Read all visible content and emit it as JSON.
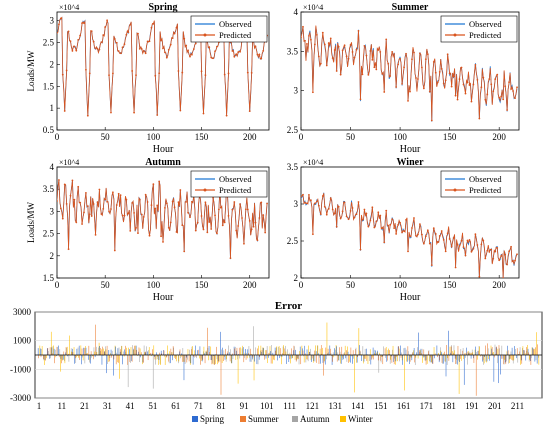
{
  "chart_data": [
    {
      "type": "line",
      "title": "Spring",
      "xlabel": "Hour",
      "ylabel": "Loads/MW",
      "y_exponent": "×10^4",
      "xlim": [
        0,
        220
      ],
      "ylim": [
        0.5,
        3.2
      ],
      "xticks": [
        "0",
        "50",
        "100",
        "150",
        "200"
      ],
      "yticks": [
        "0.5",
        "1",
        "1.5",
        "2",
        "2.5",
        "3"
      ],
      "series": [
        {
          "name": "Observed"
        },
        {
          "name": "Predicted"
        }
      ],
      "pattern": {
        "kind": "daily",
        "base": 2.7,
        "amp": 0.35,
        "peak": 3.05,
        "trough": 0.9,
        "trough_at": [
          8,
          32,
          56,
          80,
          104,
          128,
          152,
          176,
          200
        ],
        "trend": -0.4
      },
      "legend_position": "top-right"
    },
    {
      "type": "line",
      "title": "Summer",
      "xlabel": "Hour",
      "ylabel": "",
      "y_exponent": "×10^4",
      "xlim": [
        0,
        220
      ],
      "ylim": [
        2.5,
        4.0
      ],
      "xticks": [
        "0",
        "50",
        "100",
        "150",
        "200"
      ],
      "yticks": [
        "2.5",
        "3",
        "3.5",
        "4"
      ],
      "series": [
        {
          "name": "Observed"
        },
        {
          "name": "Predicted"
        }
      ],
      "pattern": {
        "kind": "noisy_decline",
        "start": 3.6,
        "end": 3.0,
        "amp": 0.25,
        "drop": 0.45
      },
      "legend_position": "top-right"
    },
    {
      "type": "line",
      "title": "Autumn",
      "xlabel": "Hour",
      "ylabel": "Loads/MW",
      "y_exponent": "×10^4",
      "xlim": [
        0,
        220
      ],
      "ylim": [
        1.5,
        4.0
      ],
      "xticks": [
        "0",
        "50",
        "100",
        "150",
        "200"
      ],
      "yticks": [
        "1.5",
        "2",
        "2.5",
        "3",
        "3.5",
        "4"
      ],
      "series": [
        {
          "name": "Observed"
        },
        {
          "name": "Predicted"
        }
      ],
      "pattern": {
        "kind": "noisy_decline",
        "start": 3.2,
        "end": 2.8,
        "amp": 0.5,
        "drop": 0.7
      },
      "legend_position": "top-right"
    },
    {
      "type": "line",
      "title": "Winer",
      "xlabel": "Hour",
      "ylabel": "",
      "y_exponent": "×10^4",
      "xlim": [
        0,
        220
      ],
      "ylim": [
        2.0,
        3.5
      ],
      "xticks": [
        "0",
        "50",
        "100",
        "150",
        "200"
      ],
      "yticks": [
        "2",
        "2.5",
        "3",
        "3.5"
      ],
      "series": [
        {
          "name": "Observed"
        },
        {
          "name": "Predicted"
        }
      ],
      "pattern": {
        "kind": "noisy_decline",
        "start": 3.05,
        "end": 2.25,
        "amp": 0.15,
        "drop": 0.35
      },
      "legend_position": "top-right"
    },
    {
      "type": "bar",
      "title": "Error",
      "ylim": [
        -3000,
        3000
      ],
      "yticks": [
        "3000",
        "1000",
        "-1000",
        "-3000"
      ],
      "xticks": [
        "1",
        "11",
        "21",
        "31",
        "41",
        "51",
        "61",
        "71",
        "81",
        "91",
        "101",
        "111",
        "121",
        "131",
        "141",
        "151",
        "161",
        "171",
        "181",
        "191",
        "201",
        "211"
      ],
      "series": [
        {
          "name": "Spring"
        },
        {
          "name": "Summer"
        },
        {
          "name": "Autumn"
        },
        {
          "name": "Winter"
        }
      ],
      "legend_position": "bottom-center"
    }
  ],
  "colors": {
    "observed": "#1f77d4",
    "predicted": "#d9541e",
    "spring": "#2e6bd1",
    "summer": "#ed7d31",
    "autumn": "#a5a5a5",
    "winter": "#ffc000"
  }
}
